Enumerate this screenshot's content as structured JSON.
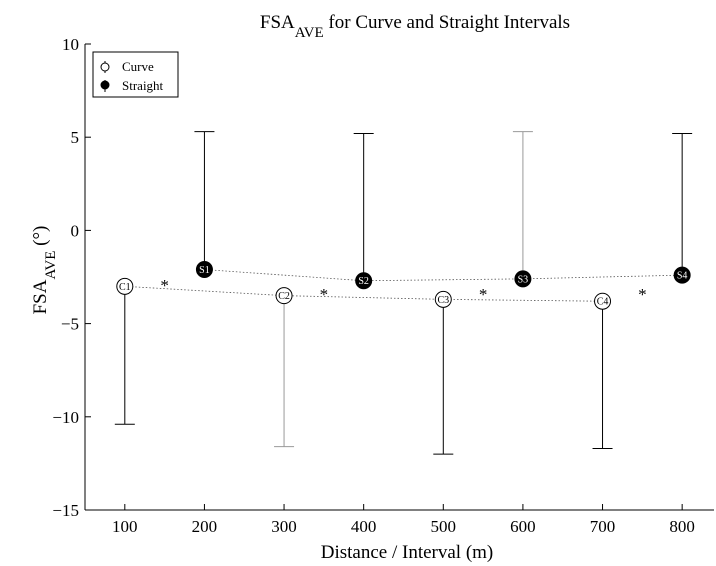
{
  "chart_data": {
    "type": "scatter",
    "title": {
      "main": "FSA",
      "sub": "AVE",
      "rest": " for Curve and Straight Intervals"
    },
    "xlabel": "Distance / Interval (m)",
    "ylabel": {
      "main": "FSA",
      "sub": "AVE",
      "rest": " (°)"
    },
    "xlim": [
      50,
      840
    ],
    "ylim": [
      -15,
      10
    ],
    "xticks": [
      100,
      200,
      300,
      400,
      500,
      600,
      700,
      800
    ],
    "yticks": [
      10,
      5,
      0,
      -5,
      -10,
      -15
    ],
    "grid": false,
    "legend_position": "top-left",
    "series": [
      {
        "name": "Curve",
        "marker": "open-circle",
        "color": "#000000",
        "points": [
          {
            "x": 100,
            "y": -3.0,
            "err_low": -10.4,
            "err_high": -3.0,
            "label": "C1"
          },
          {
            "x": 300,
            "y": -3.5,
            "err_low": -11.6,
            "err_high": -3.5,
            "label": "C2"
          },
          {
            "x": 500,
            "y": -3.7,
            "err_low": -12.0,
            "err_high": -3.7,
            "label": "C3"
          },
          {
            "x": 700,
            "y": -3.8,
            "err_low": -11.7,
            "err_high": -3.8,
            "label": "C4"
          }
        ]
      },
      {
        "name": "Straight",
        "marker": "filled-circle",
        "color": "#000000",
        "points": [
          {
            "x": 200,
            "y": -2.1,
            "err_low": -2.1,
            "err_high": 5.3,
            "label": "S1"
          },
          {
            "x": 400,
            "y": -2.7,
            "err_low": -2.7,
            "err_high": 5.2,
            "label": "S2"
          },
          {
            "x": 600,
            "y": -2.6,
            "err_low": -2.6,
            "err_high": 5.3,
            "label": "S3"
          },
          {
            "x": 800,
            "y": -2.4,
            "err_low": -2.4,
            "err_high": 5.2,
            "label": "S4"
          }
        ]
      }
    ],
    "annotations": [
      {
        "text": "*",
        "x": 150,
        "y": -2.6
      },
      {
        "text": "*",
        "x": 350,
        "y": -3.1
      },
      {
        "text": "*",
        "x": 550,
        "y": -3.1
      },
      {
        "text": "*",
        "x": 750,
        "y": -3.1
      }
    ]
  }
}
